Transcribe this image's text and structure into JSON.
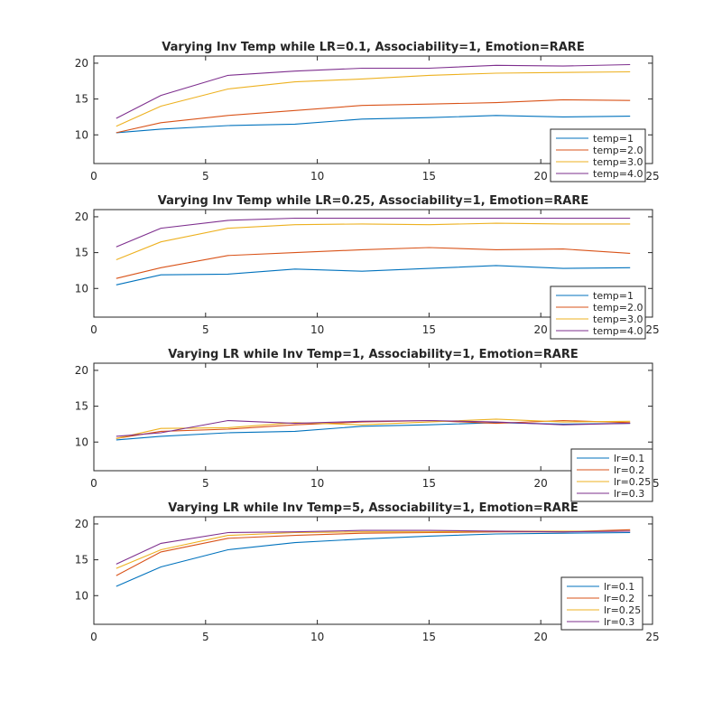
{
  "colors": [
    "#0072BD",
    "#D95319",
    "#EDB120",
    "#7E2F8E"
  ],
  "chart_data": [
    {
      "type": "line",
      "title": "Varying Inv Temp while LR=0.1, Associability=1, Emotion=RARE",
      "xlim": [
        0,
        25
      ],
      "ylim": [
        6,
        21
      ],
      "xticks": [
        0,
        5,
        10,
        15,
        20,
        25
      ],
      "yticks": [
        10,
        15,
        20
      ],
      "x": [
        1,
        3,
        6,
        9,
        12,
        15,
        18,
        21,
        24
      ],
      "legend_position": "bottom-right",
      "series": [
        {
          "name": "temp=1",
          "values": [
            10.3,
            10.8,
            11.3,
            11.5,
            12.2,
            12.4,
            12.7,
            12.5,
            12.6
          ]
        },
        {
          "name": "temp=2.0",
          "values": [
            10.3,
            11.7,
            12.7,
            13.4,
            14.1,
            14.3,
            14.5,
            14.9,
            14.8
          ]
        },
        {
          "name": "temp=3.0",
          "values": [
            11.2,
            14.0,
            16.4,
            17.4,
            17.8,
            18.3,
            18.6,
            18.7,
            18.8
          ]
        },
        {
          "name": "temp=4.0",
          "values": [
            12.3,
            15.5,
            18.3,
            18.9,
            19.3,
            19.3,
            19.7,
            19.6,
            19.8
          ]
        }
      ]
    },
    {
      "type": "line",
      "title": "Varying Inv Temp while LR=0.25, Associability=1, Emotion=RARE",
      "xlim": [
        0,
        25
      ],
      "ylim": [
        6,
        21
      ],
      "xticks": [
        0,
        5,
        10,
        15,
        20,
        25
      ],
      "yticks": [
        10,
        15,
        20
      ],
      "x": [
        1,
        3,
        6,
        9,
        12,
        15,
        18,
        21,
        24
      ],
      "legend_position": "bottom-right",
      "series": [
        {
          "name": "temp=1",
          "values": [
            10.5,
            11.9,
            12.0,
            12.7,
            12.4,
            12.8,
            13.2,
            12.8,
            12.9
          ]
        },
        {
          "name": "temp=2.0",
          "values": [
            11.4,
            12.9,
            14.6,
            15.0,
            15.4,
            15.7,
            15.4,
            15.5,
            14.9
          ]
        },
        {
          "name": "temp=3.0",
          "values": [
            14.0,
            16.5,
            18.4,
            18.9,
            19.0,
            18.9,
            19.1,
            19.0,
            19.0
          ]
        },
        {
          "name": "temp=4.0",
          "values": [
            15.8,
            18.4,
            19.5,
            19.8,
            19.8,
            19.8,
            19.8,
            19.8,
            19.8
          ]
        }
      ]
    },
    {
      "type": "line",
      "title": "Varying LR while Inv Temp=1, Associability=1, Emotion=RARE",
      "xlim": [
        0,
        25
      ],
      "ylim": [
        6,
        21
      ],
      "xticks": [
        0,
        5,
        10,
        15,
        20,
        25
      ],
      "yticks": [
        10,
        15,
        20
      ],
      "x": [
        1,
        3,
        6,
        9,
        12,
        15,
        18,
        21,
        24
      ],
      "legend_position": "bottom-right",
      "series": [
        {
          "name": "lr=0.1",
          "values": [
            10.3,
            10.8,
            11.3,
            11.5,
            12.2,
            12.4,
            12.7,
            12.5,
            12.6
          ]
        },
        {
          "name": "lr=0.2",
          "values": [
            10.5,
            11.5,
            11.8,
            12.4,
            12.8,
            13.0,
            12.6,
            13.0,
            12.7
          ]
        },
        {
          "name": "lr=0.25",
          "values": [
            10.5,
            11.9,
            12.0,
            12.7,
            12.4,
            12.8,
            13.2,
            12.8,
            12.9
          ]
        },
        {
          "name": "lr=0.3",
          "values": [
            10.8,
            11.3,
            13.0,
            12.6,
            12.9,
            13.0,
            12.8,
            12.4,
            12.6
          ]
        }
      ]
    },
    {
      "type": "line",
      "title": "Varying LR while Inv Temp=5, Associability=1, Emotion=RARE",
      "xlim": [
        0,
        25
      ],
      "ylim": [
        6,
        21
      ],
      "xticks": [
        0,
        5,
        10,
        15,
        20,
        25
      ],
      "yticks": [
        10,
        15,
        20
      ],
      "x": [
        1,
        3,
        6,
        9,
        12,
        15,
        18,
        21,
        24
      ],
      "legend_position": "bottom-right",
      "series": [
        {
          "name": "lr=0.1",
          "values": [
            11.3,
            14.0,
            16.4,
            17.4,
            17.9,
            18.3,
            18.6,
            18.7,
            18.8
          ]
        },
        {
          "name": "lr=0.2",
          "values": [
            12.8,
            16.1,
            18.0,
            18.4,
            18.7,
            18.8,
            18.9,
            18.9,
            19.2
          ]
        },
        {
          "name": "lr=0.25",
          "values": [
            13.8,
            16.4,
            18.4,
            18.8,
            18.9,
            18.9,
            19.0,
            19.0,
            19.0
          ]
        },
        {
          "name": "lr=0.3",
          "values": [
            14.4,
            17.3,
            18.8,
            18.9,
            19.1,
            19.1,
            19.0,
            18.9,
            19.0
          ]
        }
      ]
    }
  ]
}
